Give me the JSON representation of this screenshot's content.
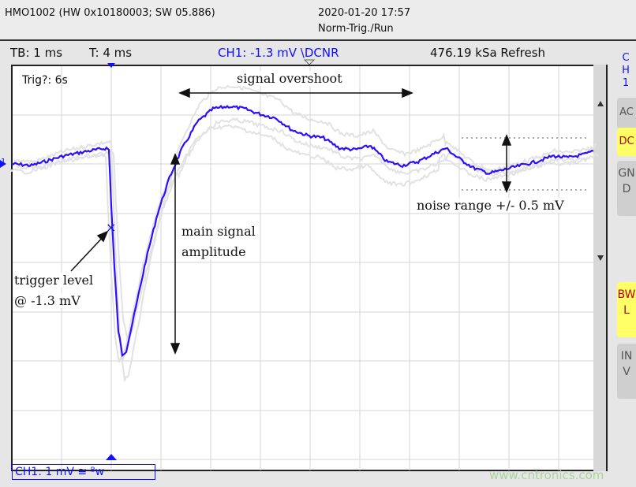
{
  "header": {
    "device": "HMO1002 (HW 0x10180003; SW 05.886)",
    "datetime": "2020-01-20 17:57",
    "mode": "Norm-Trig./Run"
  },
  "status": {
    "timebase": "TB: 1 ms",
    "trigger_time": "T: 4 ms",
    "trigger_info": "CH1: -1.3 mV \\DCNR",
    "sample_rate": "476.19 kSa Refresh"
  },
  "side": {
    "channel": "CH1",
    "ac": "AC",
    "dc": "DC",
    "gnd": "GND",
    "bwl": "BWL",
    "inv": "INV"
  },
  "plot": {
    "trig_label": "Trig?: 6s",
    "channel_marker": "1"
  },
  "annotations": {
    "overshoot": "signal overshoot",
    "amplitude_1": "main  signal",
    "amplitude_2": "amplitude",
    "trigger_1": "trigger  level",
    "trigger_2": "@ -1.3 mV",
    "noise": "noise range +/- 0.5 mV"
  },
  "footer": {
    "ch1_scale": "CH1: 1 mV ≅ ᴮw",
    "watermark": "www.cntronics.com"
  },
  "colors": {
    "trace": "#2a10ff",
    "dc_active": "#ffff66",
    "inactive": "#cfcfcf"
  }
}
